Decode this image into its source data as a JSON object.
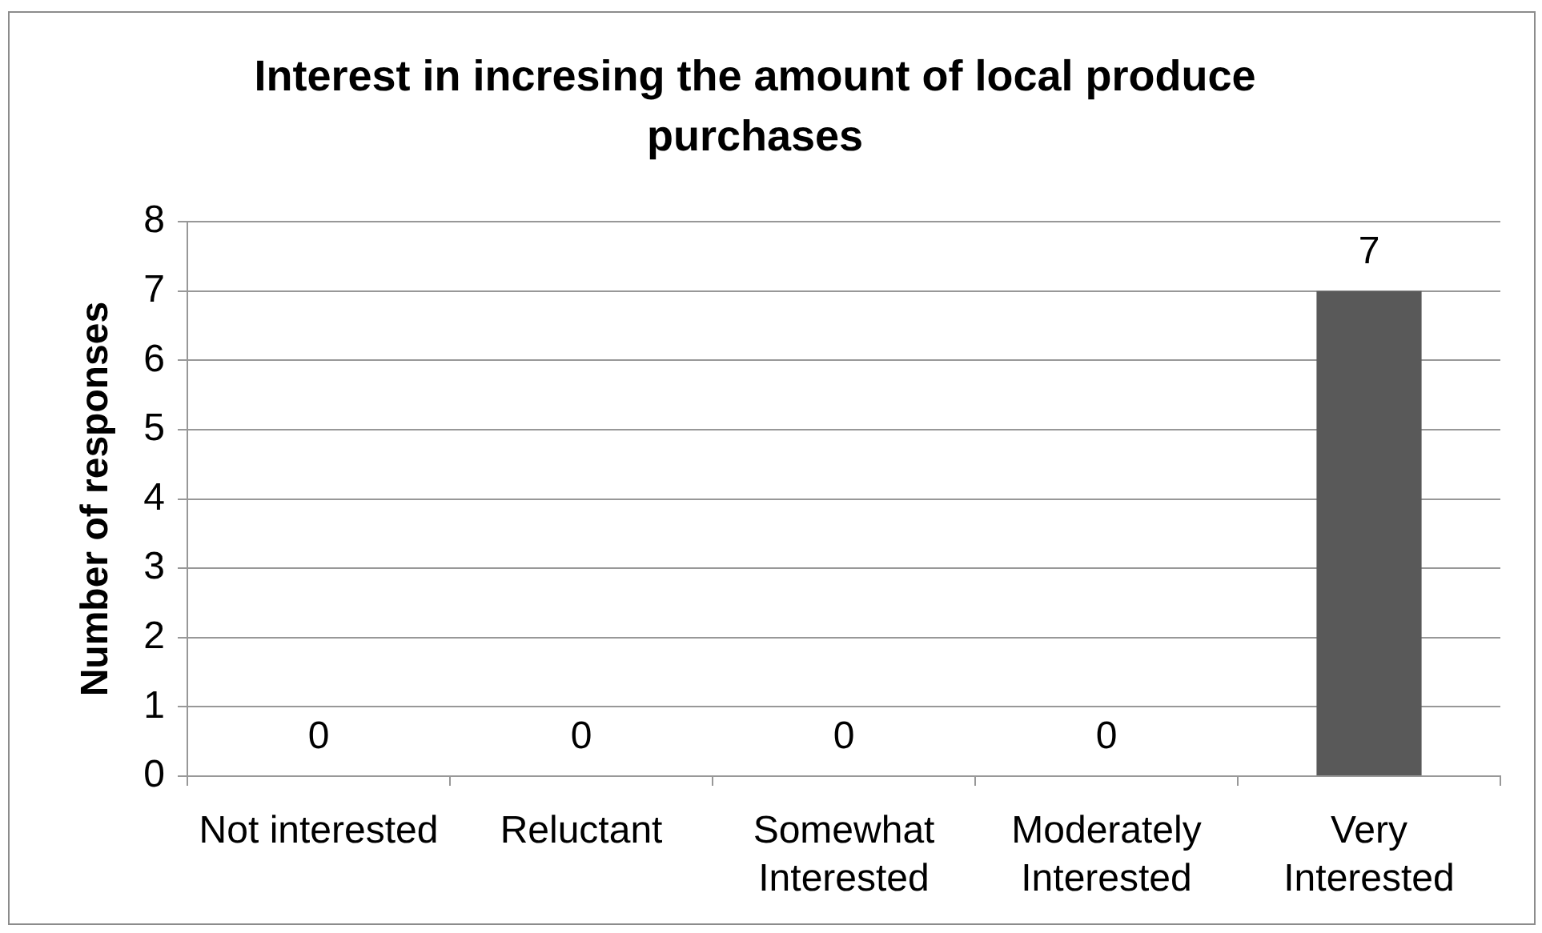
{
  "chart_data": {
    "type": "bar",
    "title": "Interest in incresing the amount of local produce purchases",
    "ylabel": "Number of responses",
    "categories": [
      "Not interested",
      "Reluctant",
      "Somewhat Interested",
      "Moderately Interested",
      "Very Interested"
    ],
    "values": [
      0,
      0,
      0,
      0,
      7
    ],
    "color": "#595959",
    "ylim": [
      0,
      8
    ],
    "yticks": [
      0,
      1,
      2,
      3,
      4,
      5,
      6,
      7,
      8
    ],
    "grid": "y",
    "legend": false,
    "data_labels": true
  }
}
